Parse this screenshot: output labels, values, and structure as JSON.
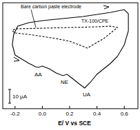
{
  "chart_data": {
    "type": "line",
    "x_label": "E/ V vs SCE",
    "xlim": [
      -0.29,
      0.7
    ],
    "ylim": [
      -29,
      48
    ],
    "xticks": [
      -0.2,
      {
        "value": 0,
        "label": "0.0"
      },
      0.2,
      0.4,
      0.6
    ],
    "tick_labels": "x",
    "grid": false,
    "series": [
      {
        "name": "TX-100/CPE",
        "color": "#000000",
        "line_style": "solid",
        "x": [
          -0.2,
          -0.15,
          -0.1,
          -0.05,
          -0.03,
          0.0,
          0.05,
          0.1,
          0.15,
          0.18,
          0.22,
          0.27,
          0.31,
          0.35,
          0.4,
          0.45,
          0.5,
          0.55,
          0.6,
          0.63,
          0.63,
          0.6,
          0.5,
          0.4,
          0.3,
          0.2,
          0.1,
          0.0,
          -0.1,
          -0.18,
          -0.21,
          -0.22,
          -0.2
        ],
        "values": [
          10,
          7,
          4,
          1.5,
          1,
          2,
          0,
          -3,
          -5,
          -4,
          -7,
          -11,
          -14,
          -10,
          -4,
          0,
          4,
          9,
          17.5,
          27.5,
          40,
          43,
          41,
          39.5,
          38,
          37,
          36,
          35,
          33.5,
          31,
          25,
          17.5,
          10
        ]
      },
      {
        "name": "Bare carbon paste electrode",
        "color": "#000000",
        "line_style": "dashed",
        "x": [
          -0.2,
          -0.1,
          0.0,
          0.1,
          0.2,
          0.28,
          0.33,
          0.38,
          0.45,
          0.5,
          0.55,
          0.5,
          0.4,
          0.2,
          0.0,
          -0.2,
          -0.22,
          -0.2
        ],
        "values": [
          26,
          25,
          23.5,
          22,
          20,
          17,
          15,
          18,
          22,
          26,
          30,
          31,
          30.5,
          30,
          29.5,
          29,
          27.5,
          26
        ]
      }
    ],
    "annotations": [
      "AA",
      "NE",
      "UA"
    ],
    "scale_bar": {
      "value": 10,
      "label": "10 μA"
    }
  }
}
